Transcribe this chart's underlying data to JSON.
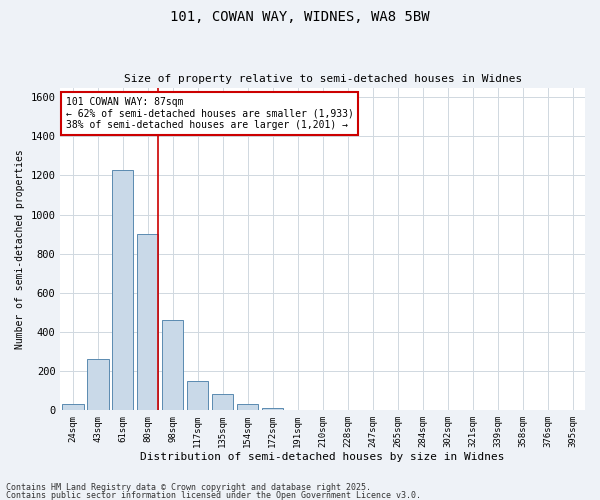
{
  "title_line1": "101, COWAN WAY, WIDNES, WA8 5BW",
  "title_line2": "Size of property relative to semi-detached houses in Widnes",
  "xlabel": "Distribution of semi-detached houses by size in Widnes",
  "ylabel": "Number of semi-detached properties",
  "categories": [
    "24sqm",
    "43sqm",
    "61sqm",
    "80sqm",
    "98sqm",
    "117sqm",
    "135sqm",
    "154sqm",
    "172sqm",
    "191sqm",
    "210sqm",
    "228sqm",
    "247sqm",
    "265sqm",
    "284sqm",
    "302sqm",
    "321sqm",
    "339sqm",
    "358sqm",
    "376sqm",
    "395sqm"
  ],
  "values": [
    30,
    260,
    1230,
    900,
    460,
    150,
    80,
    30,
    10,
    0,
    0,
    0,
    0,
    0,
    0,
    0,
    0,
    0,
    0,
    0,
    0
  ],
  "bar_color": "#c9d9e8",
  "bar_edge_color": "#5a8ab0",
  "vline_color": "#cc0000",
  "annotation_title": "101 COWAN WAY: 87sqm",
  "annotation_line1": "← 62% of semi-detached houses are smaller (1,933)",
  "annotation_line2": "38% of semi-detached houses are larger (1,201) →",
  "annotation_box_color": "#ffffff",
  "annotation_box_edge_color": "#cc0000",
  "ylim": [
    0,
    1650
  ],
  "yticks": [
    0,
    200,
    400,
    600,
    800,
    1000,
    1200,
    1400,
    1600
  ],
  "grid_color": "#d0d8e0",
  "footnote_line1": "Contains HM Land Registry data © Crown copyright and database right 2025.",
  "footnote_line2": "Contains public sector information licensed under the Open Government Licence v3.0.",
  "bg_color": "#eef2f7",
  "plot_bg_color": "#ffffff"
}
